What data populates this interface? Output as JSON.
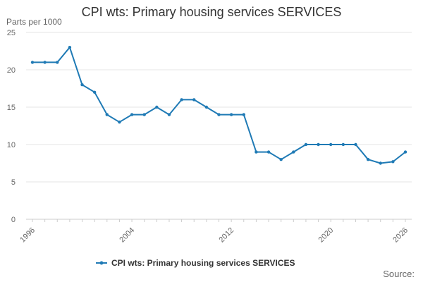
{
  "chart_data": {
    "type": "line",
    "title": "CPI wts: Primary housing services SERVICES",
    "ylabel": "Parts per 1000",
    "xlabel": "",
    "ylim": [
      0,
      25
    ],
    "yticks": [
      0,
      5,
      10,
      15,
      20,
      25
    ],
    "xlim": [
      1996,
      2026
    ],
    "xticks": [
      "1996",
      "2004",
      "2012",
      "2020",
      "2026"
    ],
    "grid": true,
    "legend_position": "bottom",
    "series": [
      {
        "name": "CPI wts: Primary housing services SERVICES",
        "color": "#1f7ab5",
        "x": [
          1996,
          1997,
          1998,
          1999,
          2000,
          2001,
          2002,
          2003,
          2004,
          2005,
          2006,
          2007,
          2008,
          2009,
          2010,
          2011,
          2012,
          2013,
          2014,
          2015,
          2016,
          2017,
          2018,
          2019,
          2020,
          2021,
          2022,
          2023,
          2024,
          2025,
          2026
        ],
        "values": [
          21,
          21,
          21,
          23,
          18,
          17,
          14,
          13,
          14,
          14,
          15,
          14,
          16,
          16,
          15,
          14,
          14,
          14,
          9,
          9,
          8,
          9,
          10,
          10,
          10,
          10,
          10,
          8,
          7.5,
          7.7,
          9
        ]
      }
    ]
  },
  "source_label": "Source:"
}
